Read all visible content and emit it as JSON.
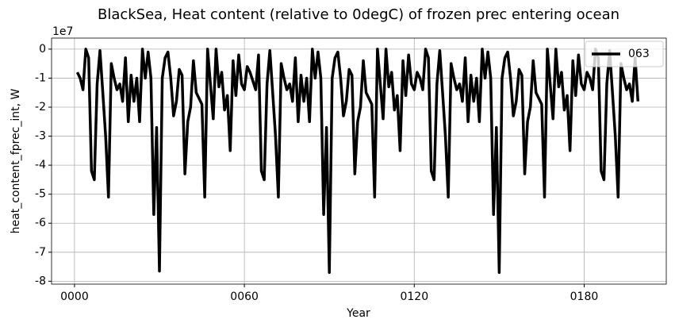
{
  "chart_data": {
    "type": "line",
    "title": "BlackSea, Heat content (relative to 0degC) of frozen prec entering ocean",
    "x_label": "Year",
    "y_label": "heat_content_fprec_int, W",
    "y_offset_label": "1e7",
    "xlim": [
      -8.1,
      209
    ],
    "ylim": [
      -8.1,
      0.38
    ],
    "xticks": [
      {
        "value": 0,
        "label": "0000"
      },
      {
        "value": 60,
        "label": "0060"
      },
      {
        "value": 120,
        "label": "0120"
      },
      {
        "value": 180,
        "label": "0180"
      }
    ],
    "yticks": [
      0,
      -1,
      -2,
      -3,
      -4,
      -5,
      -6,
      -7,
      -8
    ],
    "grid": true,
    "legend": "upper right",
    "x": [
      1,
      2,
      3,
      4,
      5,
      6,
      7,
      8,
      9,
      10,
      11,
      12,
      13,
      14,
      15,
      16,
      17,
      18,
      19,
      20,
      21,
      22,
      23,
      24,
      25,
      26,
      27,
      28,
      29,
      30,
      31,
      32,
      33,
      34,
      35,
      36,
      37,
      38,
      39,
      40,
      41,
      42,
      43,
      44,
      45,
      46,
      47,
      48,
      49,
      50,
      51,
      52,
      53,
      54,
      55,
      56,
      57,
      58,
      59,
      60,
      61,
      62,
      63,
      64,
      65,
      66,
      67,
      68,
      69,
      70,
      71,
      72,
      73,
      74,
      75,
      76,
      77,
      78,
      79,
      80,
      81,
      82,
      83,
      84,
      85,
      86,
      87,
      88,
      89,
      90,
      91,
      92,
      93,
      94,
      95,
      96,
      97,
      98,
      99,
      100,
      101,
      102,
      103,
      104,
      105,
      106,
      107,
      108,
      109,
      110,
      111,
      112,
      113,
      114,
      115,
      116,
      117,
      118,
      119,
      120,
      121,
      122,
      123,
      124,
      125,
      126,
      127,
      128,
      129,
      130,
      131,
      132,
      133,
      134,
      135,
      136,
      137,
      138,
      139,
      140,
      141,
      142,
      143,
      144,
      145,
      146,
      147,
      148,
      149,
      150,
      151,
      152,
      153,
      154,
      155,
      156,
      157,
      158,
      159,
      160,
      161,
      162,
      163,
      164,
      165,
      166,
      167,
      168,
      169,
      170,
      171,
      172,
      173,
      174,
      175,
      176,
      177,
      178,
      179,
      180,
      181,
      182,
      183,
      184,
      185,
      186,
      187,
      188,
      189,
      190,
      191,
      192,
      193,
      194,
      195,
      196,
      197,
      198,
      199
    ],
    "series": [
      {
        "name": "063",
        "color": "#000000",
        "values": [
          -0.8,
          -1.0,
          -1.4,
          0,
          -0.3,
          -4.2,
          -4.5,
          -1.2,
          -0.05,
          -1.5,
          -3.0,
          -5.1,
          -0.5,
          -1.0,
          -1.4,
          -1.2,
          -1.8,
          -0.3,
          -2.5,
          -0.9,
          -1.8,
          -1.0,
          -2.5,
          0,
          -1.0,
          -0.1,
          -1.0,
          -5.7,
          -2.7,
          -7.65,
          -1.0,
          -0.3,
          -0.1,
          -1.0,
          -2.3,
          -1.8,
          -0.7,
          -0.9,
          -4.3,
          -2.5,
          -2.0,
          -0.4,
          -1.5,
          -1.7,
          -1.9,
          -5.1,
          0,
          -1.2,
          -2.4,
          0,
          -1.3,
          -0.8,
          -2.1,
          -1.6,
          -3.5,
          -0.4,
          -1.6,
          -0.2,
          -1.2,
          -1.4,
          -0.6,
          -0.8,
          -1.1,
          -1.4,
          -0.2,
          -4.2,
          -4.5,
          -1.2,
          -0.05,
          -1.5,
          -3.0,
          -5.1,
          -0.5,
          -1.0,
          -1.4,
          -1.2,
          -1.8,
          -0.3,
          -2.5,
          -0.9,
          -1.8,
          -1.0,
          -2.5,
          0,
          -1.0,
          -0.1,
          -1.0,
          -5.7,
          -2.7,
          -7.7,
          -1.0,
          -0.3,
          -0.1,
          -1.0,
          -2.3,
          -1.8,
          -0.7,
          -0.9,
          -4.3,
          -2.5,
          -2.0,
          -0.4,
          -1.5,
          -1.7,
          -1.9,
          -5.1,
          0,
          -1.2,
          -2.4,
          0,
          -1.3,
          -0.8,
          -2.1,
          -1.6,
          -3.5,
          -0.4,
          -1.6,
          -0.2,
          -1.2,
          -1.4,
          -0.8,
          -1.0,
          -1.4,
          0,
          -0.3,
          -4.2,
          -4.5,
          -1.2,
          -0.05,
          -1.5,
          -3.0,
          -5.1,
          -0.5,
          -1.0,
          -1.4,
          -1.2,
          -1.8,
          -0.3,
          -2.5,
          -0.9,
          -1.8,
          -1.0,
          -2.5,
          0,
          -1.0,
          -0.1,
          -1.0,
          -5.7,
          -2.7,
          -7.7,
          -1.0,
          -0.3,
          -0.1,
          -1.0,
          -2.3,
          -1.8,
          -0.7,
          -0.9,
          -4.3,
          -2.5,
          -2.0,
          -0.4,
          -1.5,
          -1.7,
          -1.9,
          -5.1,
          0,
          -1.2,
          -2.4,
          0,
          -1.3,
          -0.8,
          -2.1,
          -1.6,
          -3.5,
          -0.4,
          -1.6,
          -0.2,
          -1.2,
          -1.4,
          -0.8,
          -1.0,
          -1.4,
          0,
          -0.3,
          -4.2,
          -4.5,
          -1.2,
          -0.05,
          -1.5,
          -3.0,
          -5.1,
          -0.5,
          -1.0,
          -1.4,
          -1.2,
          -1.8,
          -0.3,
          -1.8
        ]
      }
    ]
  }
}
